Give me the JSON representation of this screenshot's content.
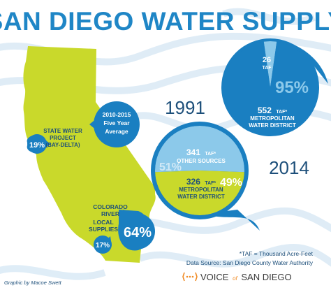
{
  "title": "SAN DIEGO WATER SUPPLY",
  "credit": "Graphic by Macoe Swett",
  "footnote": "*TAF = Thousand Acre-Feet",
  "source": "Data Source: San Diego County Water Authority",
  "brand": {
    "pre": "VOICE",
    "of": "of",
    "post": "SAN DIEGO"
  },
  "average_bubble": {
    "line1": "2010-2015",
    "line2": "Five Year",
    "line3": "Average"
  },
  "colors": {
    "title": "#1f86c6",
    "land": "#c9d92b",
    "blue_dark": "#1a7fc1",
    "blue_light": "#8cc9ea",
    "text_dark": "#1d4f7a",
    "accent_orange": "#f08a24"
  },
  "icons": {
    "brand": "voice-of-san-diego-logo-icon"
  },
  "chart_data": [
    {
      "type": "pie",
      "title": "1991",
      "slices": [
        {
          "label_line1": "552",
          "label_unit": "TAF*",
          "label_line2": "METROPOLITAN",
          "label_line3": "WATER DISTRICT",
          "value": 552,
          "percent_text": "95%",
          "color": "#1a7fc1"
        },
        {
          "label_line1": "26",
          "label_unit": "TAF",
          "value": 26,
          "color": "#8cc9ea"
        }
      ]
    },
    {
      "type": "pie",
      "title": "2014",
      "slices": [
        {
          "label_line1": "341",
          "label_unit": "TAF*",
          "label_line2": "OTHER SOURCES",
          "value": 341,
          "percent_text": "51%",
          "color": "#8cc9ea"
        },
        {
          "label_line1": "326",
          "label_unit": "TAF*",
          "label_line2": "METROPOLITAN",
          "label_line3": "WATER DISTRICT",
          "value": 326,
          "percent_text": "49%",
          "color": "#c9d92b"
        }
      ]
    },
    {
      "type": "annotated-map",
      "title": "2010-2015 Five Year Average",
      "items": [
        {
          "label_line1": "STATE WATER",
          "label_line2": "PROJECT",
          "label_line3": "(BAY-DELTA)",
          "percent_text": "19%",
          "value": 19
        },
        {
          "label_line1": "COLORADO",
          "label_line2": "RIVER",
          "percent_text": "64%",
          "value": 64
        },
        {
          "label_line1": "LOCAL",
          "label_line2": "SUPPLIES",
          "percent_text": "17%",
          "value": 17
        }
      ]
    }
  ]
}
